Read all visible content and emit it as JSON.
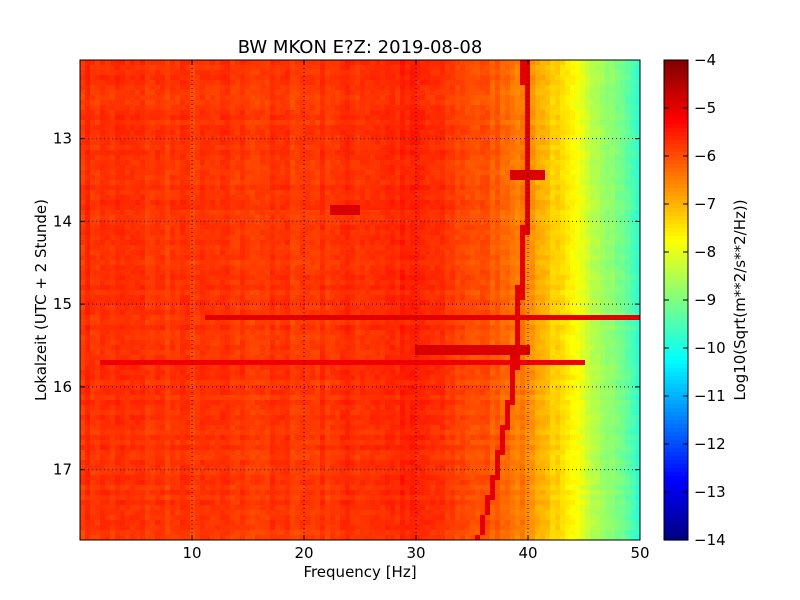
{
  "chart_data": {
    "type": "heatmap",
    "title": "BW MKON E?Z: 2019-08-08",
    "xlabel": "Frequency [Hz]",
    "ylabel": "Lokalzeit (UTC + 2 Stunde)",
    "colorbar_label": "Log10(Sqrt(m**2/s**2/Hz))",
    "colormap": "jet",
    "xlim": [
      0,
      50
    ],
    "ylim": [
      17.85,
      12.05
    ],
    "clim": [
      -14,
      -4
    ],
    "x_ticks": [
      10,
      20,
      30,
      40,
      50
    ],
    "x_tick_labels": [
      "10",
      "20",
      "30",
      "40",
      "50"
    ],
    "y_ticks": [
      13,
      14,
      15,
      16,
      17
    ],
    "y_tick_labels": [
      "13",
      "14",
      "15",
      "16",
      "17"
    ],
    "colorbar_ticks": [
      -4,
      -5,
      -6,
      -7,
      -8,
      -9,
      -10,
      -11,
      -12,
      -13,
      -14
    ],
    "colorbar_tick_labels": [
      "−4",
      "−5",
      "−6",
      "−7",
      "−8",
      "−9",
      "−10",
      "−11",
      "−12",
      "−13",
      "−14"
    ],
    "grid": true,
    "frequency_profile": [
      {
        "x": 0,
        "value": -5.7
      },
      {
        "x": 10,
        "value": -5.8
      },
      {
        "x": 20,
        "value": -5.8
      },
      {
        "x": 30,
        "value": -5.6
      },
      {
        "x": 38,
        "value": -6.2
      },
      {
        "x": 40,
        "value": -6.6
      },
      {
        "x": 42,
        "value": -7.2
      },
      {
        "x": 44,
        "value": -7.8
      },
      {
        "x": 46,
        "value": -8.4
      },
      {
        "x": 48,
        "value": -9.0
      },
      {
        "x": 50,
        "value": -9.8
      }
    ],
    "bright_time_bands": [
      {
        "time": 13.45,
        "x_range": [
          38.5,
          41.5
        ],
        "value": -4.9
      },
      {
        "time": 13.85,
        "x_range": [
          22.5,
          25
        ],
        "value": -4.9
      },
      {
        "time": 15.15,
        "x_range": [
          11,
          50
        ],
        "value": -5.0
      },
      {
        "time": 15.55,
        "x_range": [
          30,
          40
        ],
        "value": -4.9
      },
      {
        "time": 15.7,
        "x_range": [
          2,
          45
        ],
        "value": -5.1
      }
    ],
    "drifting_line": [
      {
        "time": 12.05,
        "freq": 39.7
      },
      {
        "time": 13.5,
        "freq": 40.1
      },
      {
        "time": 15.0,
        "freq": 39.2
      },
      {
        "time": 16.0,
        "freq": 38.7
      },
      {
        "time": 17.0,
        "freq": 37.2
      },
      {
        "time": 17.85,
        "freq": 35.6
      }
    ]
  }
}
